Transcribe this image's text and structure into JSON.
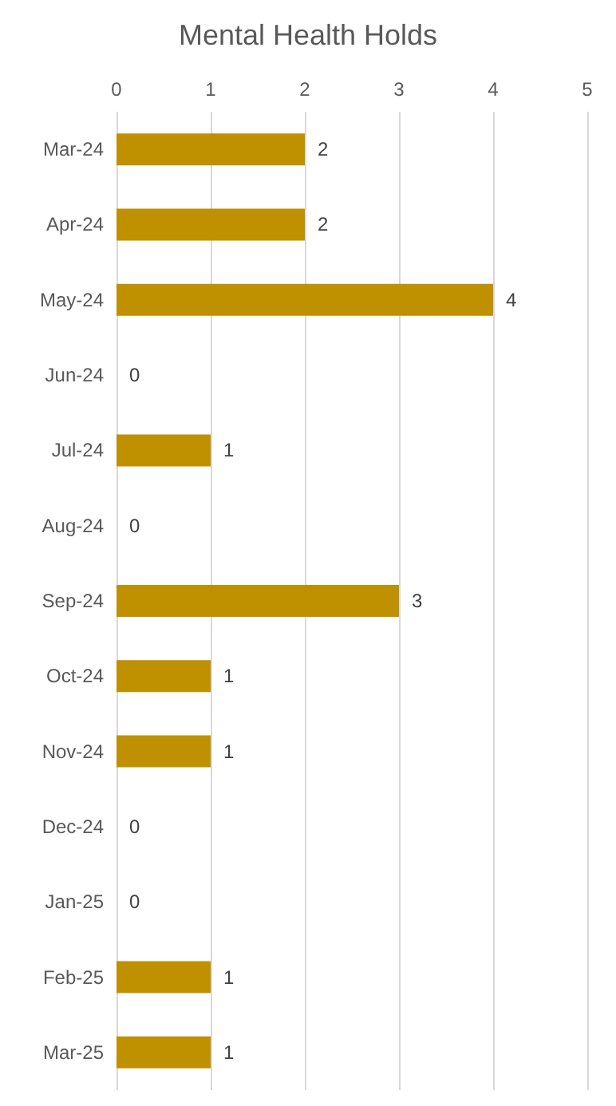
{
  "chart_data": {
    "type": "bar",
    "orientation": "horizontal",
    "title": "Mental Health Holds",
    "categories": [
      "Mar-24",
      "Apr-24",
      "May-24",
      "Jun-24",
      "Jul-24",
      "Aug-24",
      "Sep-24",
      "Oct-24",
      "Nov-24",
      "Dec-24",
      "Jan-25",
      "Feb-25",
      "Mar-25"
    ],
    "values": [
      2,
      2,
      4,
      0,
      1,
      0,
      3,
      1,
      1,
      0,
      0,
      1,
      1
    ],
    "color": "#bf9000",
    "xlim": [
      0,
      5
    ],
    "xticks": [
      0,
      1,
      2,
      3,
      4,
      5
    ],
    "grid": "x",
    "data_labels": true
  }
}
